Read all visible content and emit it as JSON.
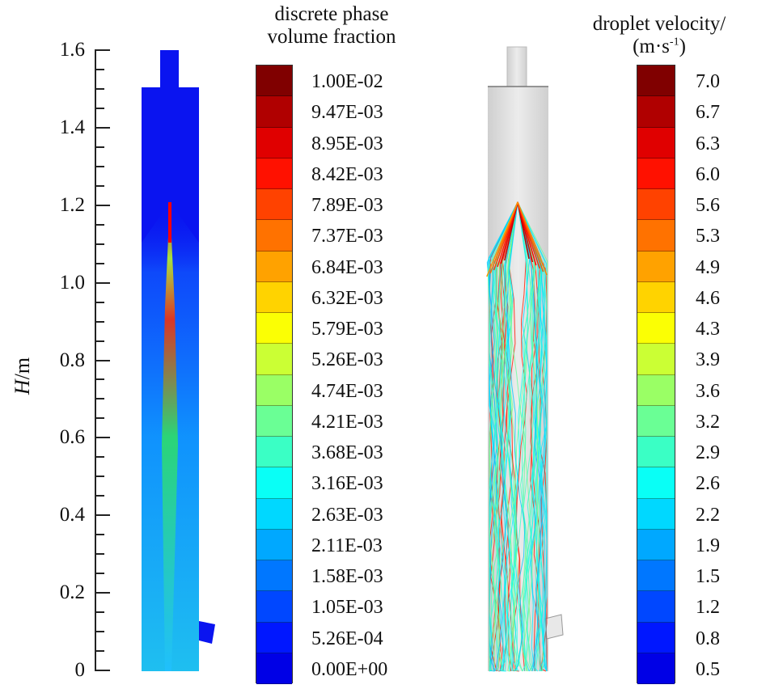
{
  "axis": {
    "label_italic": "H",
    "label_unit": "/m",
    "ticks": [
      "0",
      "0.2",
      "0.4",
      "0.6",
      "0.8",
      "1.0",
      "1.2",
      "1.4",
      "1.6"
    ],
    "range": [
      0,
      1.6
    ],
    "minor_step": 0.05
  },
  "left_panel": {
    "title_line1": "discrete phase",
    "title_line2": "volume fraction",
    "legend_labels": [
      "1.00E-02",
      "9.47E-03",
      "8.95E-03",
      "8.42E-03",
      "7.89E-03",
      "7.37E-03",
      "6.84E-03",
      "6.32E-03",
      "5.79E-03",
      "5.26E-03",
      "4.74E-03",
      "4.21E-03",
      "3.68E-03",
      "3.16E-03",
      "2.63E-03",
      "2.11E-03",
      "1.58E-03",
      "1.05E-03",
      "5.26E-04",
      "0.00E+00"
    ]
  },
  "right_panel": {
    "title_line1": "droplet velocity/",
    "title_line2_prefix": "(m·s",
    "title_line2_sup": "-1",
    "title_line2_suffix": ")",
    "legend_labels": [
      "7.0",
      "6.7",
      "6.3",
      "6.0",
      "5.6",
      "5.3",
      "4.9",
      "4.6",
      "4.3",
      "3.9",
      "3.6",
      "3.2",
      "2.9",
      "2.6",
      "2.2",
      "1.9",
      "1.5",
      "1.2",
      "0.8",
      "0.5"
    ]
  },
  "colors": {
    "body_blue": "#0a14f0",
    "vessel_gray": "#dcdcdc"
  }
}
